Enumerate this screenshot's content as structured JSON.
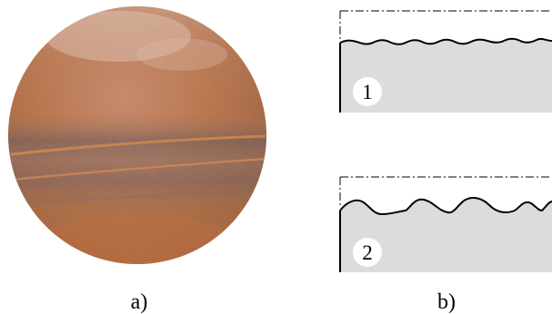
{
  "captions": {
    "left": "a)",
    "right": "b)"
  },
  "profiles": [
    {
      "label": "1"
    },
    {
      "label": "2"
    }
  ],
  "colors": {
    "material_fill": "#dcdcdc",
    "outline": "#000000",
    "rust_dark": "#6b5a5e",
    "rust_orange": "#c9733f",
    "rust_light": "#d9a58a"
  }
}
